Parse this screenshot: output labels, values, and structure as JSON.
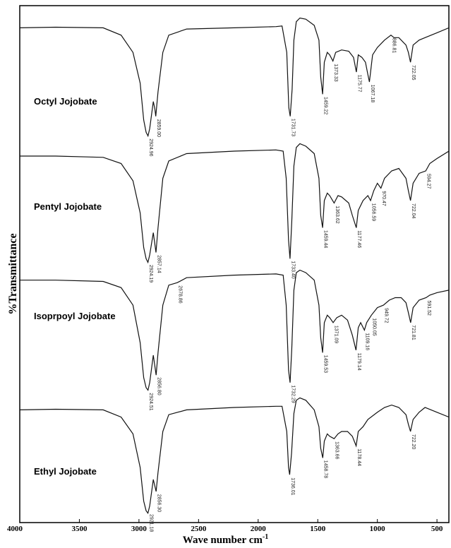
{
  "chart_data": {
    "type": "line",
    "title": "",
    "xlabel": "Wave number cm",
    "xlabel_superscript": "-1",
    "ylabel": "%Transmittance",
    "xlim": [
      4000,
      400
    ],
    "x_ticks": [
      4000,
      3500,
      3000,
      2500,
      2000,
      1500,
      1000,
      500
    ],
    "grid": false,
    "series": [
      {
        "name": "Octyl Jojobate",
        "points": [
          [
            4000,
            90
          ],
          [
            3700,
            90.5
          ],
          [
            3300,
            90
          ],
          [
            3150,
            84
          ],
          [
            3050,
            70
          ],
          [
            2990,
            45
          ],
          [
            2960,
            15
          ],
          [
            2940,
            5
          ],
          [
            2924,
            2
          ],
          [
            2910,
            8
          ],
          [
            2880,
            30
          ],
          [
            2867,
            24
          ],
          [
            2859,
            18
          ],
          [
            2840,
            38
          ],
          [
            2800,
            70
          ],
          [
            2750,
            84
          ],
          [
            2600,
            89
          ],
          [
            2200,
            90
          ],
          [
            1850,
            91
          ],
          [
            1800,
            91.5
          ],
          [
            1760,
            70
          ],
          [
            1743,
            25
          ],
          [
            1731,
            18
          ],
          [
            1715,
            40
          ],
          [
            1700,
            80
          ],
          [
            1680,
            95
          ],
          [
            1650,
            98
          ],
          [
            1600,
            97
          ],
          [
            1530,
            92
          ],
          [
            1490,
            80
          ],
          [
            1475,
            50
          ],
          [
            1459,
            36
          ],
          [
            1445,
            62
          ],
          [
            1420,
            70
          ],
          [
            1400,
            68
          ],
          [
            1373,
            63
          ],
          [
            1350,
            70
          ],
          [
            1300,
            72
          ],
          [
            1240,
            71
          ],
          [
            1200,
            66
          ],
          [
            1176,
            54
          ],
          [
            1160,
            68
          ],
          [
            1130,
            66
          ],
          [
            1100,
            62
          ],
          [
            1080,
            52
          ],
          [
            1067,
            46
          ],
          [
            1040,
            68
          ],
          [
            1000,
            74
          ],
          [
            940,
            80
          ],
          [
            886,
            84
          ],
          [
            860,
            82
          ],
          [
            820,
            82
          ],
          [
            760,
            76
          ],
          [
            740,
            70
          ],
          [
            722,
            62
          ],
          [
            700,
            76
          ],
          [
            650,
            80
          ],
          [
            600,
            82
          ],
          [
            500,
            86
          ],
          [
            400,
            90
          ]
        ],
        "peaks": [
          {
            "x": 2924.96,
            "label": "2924.96"
          },
          {
            "x": 2859.0,
            "label": "2859.00"
          },
          {
            "x": 1731.73,
            "label": "1731.73"
          },
          {
            "x": 1459.22,
            "label": "1459.22"
          },
          {
            "x": 1373.33,
            "label": "1373.33"
          },
          {
            "x": 1175.77,
            "label": "1175.77"
          },
          {
            "x": 1067.18,
            "label": "1067.18"
          },
          {
            "x": 886.81,
            "label": "886.81"
          },
          {
            "x": 722.05,
            "label": "722.05"
          }
        ]
      },
      {
        "name": "Pentyl Jojobate",
        "points": [
          [
            4000,
            88
          ],
          [
            3700,
            88
          ],
          [
            3300,
            87
          ],
          [
            3150,
            82
          ],
          [
            3050,
            68
          ],
          [
            2990,
            42
          ],
          [
            2960,
            14
          ],
          [
            2940,
            5
          ],
          [
            2925,
            2
          ],
          [
            2910,
            8
          ],
          [
            2880,
            26
          ],
          [
            2857,
            10
          ],
          [
            2840,
            30
          ],
          [
            2800,
            70
          ],
          [
            2750,
            84
          ],
          [
            2600,
            90
          ],
          [
            2200,
            92
          ],
          [
            1850,
            93
          ],
          [
            1790,
            92
          ],
          [
            1765,
            70
          ],
          [
            1745,
            20
          ],
          [
            1733,
            5
          ],
          [
            1718,
            35
          ],
          [
            1700,
            80
          ],
          [
            1680,
            95
          ],
          [
            1650,
            98
          ],
          [
            1600,
            96
          ],
          [
            1530,
            90
          ],
          [
            1490,
            70
          ],
          [
            1475,
            40
          ],
          [
            1459,
            30
          ],
          [
            1445,
            52
          ],
          [
            1420,
            58
          ],
          [
            1400,
            56
          ],
          [
            1363,
            50
          ],
          [
            1330,
            56
          ],
          [
            1300,
            55
          ],
          [
            1240,
            50
          ],
          [
            1210,
            40
          ],
          [
            1177,
            30
          ],
          [
            1160,
            44
          ],
          [
            1120,
            52
          ],
          [
            1080,
            56
          ],
          [
            1057,
            52
          ],
          [
            1030,
            60
          ],
          [
            1000,
            66
          ],
          [
            970,
            62
          ],
          [
            940,
            70
          ],
          [
            880,
            76
          ],
          [
            820,
            78
          ],
          [
            760,
            70
          ],
          [
            740,
            60
          ],
          [
            722,
            52
          ],
          [
            700,
            66
          ],
          [
            650,
            74
          ],
          [
            594,
            76
          ],
          [
            560,
            82
          ],
          [
            500,
            86
          ],
          [
            400,
            92
          ]
        ],
        "peaks": [
          {
            "x": 2924.19,
            "label": "2924.19"
          },
          {
            "x": 2857.14,
            "label": "2857.14"
          },
          {
            "x": 1733.4,
            "label": "1733.40"
          },
          {
            "x": 1459.44,
            "label": "1459.44"
          },
          {
            "x": 1363.62,
            "label": "1363.62"
          },
          {
            "x": 1177.46,
            "label": "1177.46"
          },
          {
            "x": 1056.59,
            "label": "1056.59"
          },
          {
            "x": 970.47,
            "label": "970.47"
          },
          {
            "x": 722.04,
            "label": "722.04"
          },
          {
            "x": 594.27,
            "label": "594.27"
          }
        ]
      },
      {
        "name": "Isoprpoyl Jojobate",
        "points": [
          [
            4000,
            90
          ],
          [
            3700,
            90
          ],
          [
            3300,
            89
          ],
          [
            3150,
            84
          ],
          [
            3050,
            70
          ],
          [
            2990,
            40
          ],
          [
            2960,
            12
          ],
          [
            2940,
            4
          ],
          [
            2924,
            2
          ],
          [
            2910,
            8
          ],
          [
            2880,
            30
          ],
          [
            2856,
            14
          ],
          [
            2840,
            32
          ],
          [
            2800,
            70
          ],
          [
            2750,
            86
          ],
          [
            2678,
            88
          ],
          [
            2600,
            92
          ],
          [
            2200,
            94
          ],
          [
            1850,
            95
          ],
          [
            1790,
            94
          ],
          [
            1765,
            70
          ],
          [
            1745,
            18
          ],
          [
            1732,
            8
          ],
          [
            1718,
            35
          ],
          [
            1700,
            82
          ],
          [
            1680,
            96
          ],
          [
            1650,
            98
          ],
          [
            1600,
            96
          ],
          [
            1530,
            90
          ],
          [
            1490,
            70
          ],
          [
            1475,
            44
          ],
          [
            1459,
            32
          ],
          [
            1445,
            56
          ],
          [
            1420,
            62
          ],
          [
            1400,
            60
          ],
          [
            1371,
            56
          ],
          [
            1340,
            60
          ],
          [
            1300,
            62
          ],
          [
            1250,
            58
          ],
          [
            1210,
            46
          ],
          [
            1179,
            34
          ],
          [
            1160,
            52
          ],
          [
            1140,
            56
          ],
          [
            1109,
            50
          ],
          [
            1090,
            56
          ],
          [
            1050,
            62
          ],
          [
            1000,
            68
          ],
          [
            949,
            70
          ],
          [
            900,
            74
          ],
          [
            850,
            76
          ],
          [
            800,
            76
          ],
          [
            760,
            72
          ],
          [
            740,
            64
          ],
          [
            721,
            56
          ],
          [
            700,
            68
          ],
          [
            650,
            74
          ],
          [
            591,
            76
          ],
          [
            560,
            78
          ],
          [
            500,
            80
          ],
          [
            400,
            82
          ]
        ],
        "peaks": [
          {
            "x": 2924.51,
            "label": "2924.51"
          },
          {
            "x": 2856.8,
            "label": "2856.80"
          },
          {
            "x": 2678.86,
            "label": "2678.86"
          },
          {
            "x": 1732.29,
            "label": "1732.29"
          },
          {
            "x": 1459.53,
            "label": "1459.53"
          },
          {
            "x": 1371.09,
            "label": "1371.09"
          },
          {
            "x": 1179.14,
            "label": "1179.14"
          },
          {
            "x": 1109.16,
            "label": "1109.16"
          },
          {
            "x": 1050.05,
            "label": "1050.05"
          },
          {
            "x": 949.72,
            "label": "949.72"
          },
          {
            "x": 721.81,
            "label": "721.81"
          },
          {
            "x": 591.52,
            "label": "591.52"
          }
        ]
      },
      {
        "name": "Ethyl Jojobate",
        "points": [
          [
            4000,
            88
          ],
          [
            3700,
            88.5
          ],
          [
            3300,
            88
          ],
          [
            3150,
            82
          ],
          [
            3050,
            68
          ],
          [
            2990,
            40
          ],
          [
            2960,
            12
          ],
          [
            2940,
            4
          ],
          [
            2925,
            2
          ],
          [
            2910,
            8
          ],
          [
            2880,
            30
          ],
          [
            2856,
            20
          ],
          [
            2840,
            36
          ],
          [
            2800,
            70
          ],
          [
            2750,
            84
          ],
          [
            2600,
            88
          ],
          [
            2200,
            90
          ],
          [
            1850,
            91
          ],
          [
            1800,
            91
          ],
          [
            1760,
            70
          ],
          [
            1745,
            40
          ],
          [
            1736,
            34
          ],
          [
            1720,
            52
          ],
          [
            1700,
            85
          ],
          [
            1680,
            96
          ],
          [
            1650,
            98
          ],
          [
            1600,
            96
          ],
          [
            1530,
            88
          ],
          [
            1490,
            74
          ],
          [
            1475,
            56
          ],
          [
            1458,
            48
          ],
          [
            1445,
            62
          ],
          [
            1420,
            68
          ],
          [
            1400,
            66
          ],
          [
            1363,
            64
          ],
          [
            1330,
            68
          ],
          [
            1300,
            70
          ],
          [
            1250,
            70
          ],
          [
            1210,
            66
          ],
          [
            1178,
            58
          ],
          [
            1160,
            70
          ],
          [
            1120,
            74
          ],
          [
            1080,
            80
          ],
          [
            1000,
            86
          ],
          [
            940,
            90
          ],
          [
            880,
            92
          ],
          [
            820,
            90
          ],
          [
            760,
            84
          ],
          [
            740,
            76
          ],
          [
            722,
            70
          ],
          [
            700,
            80
          ],
          [
            650,
            86
          ],
          [
            600,
            90
          ],
          [
            500,
            86
          ],
          [
            400,
            82
          ]
        ],
        "peaks": [
          {
            "x": 2921.18,
            "label": "2921.18"
          },
          {
            "x": 2856.3,
            "label": "2856.30"
          },
          {
            "x": 1736.01,
            "label": "1736.01"
          },
          {
            "x": 1458.78,
            "label": "1458.78"
          },
          {
            "x": 1363.66,
            "label": "1363.66"
          },
          {
            "x": 1178.44,
            "label": "1178.44"
          },
          {
            "x": 722.2,
            "label": "722.20"
          }
        ]
      }
    ]
  }
}
